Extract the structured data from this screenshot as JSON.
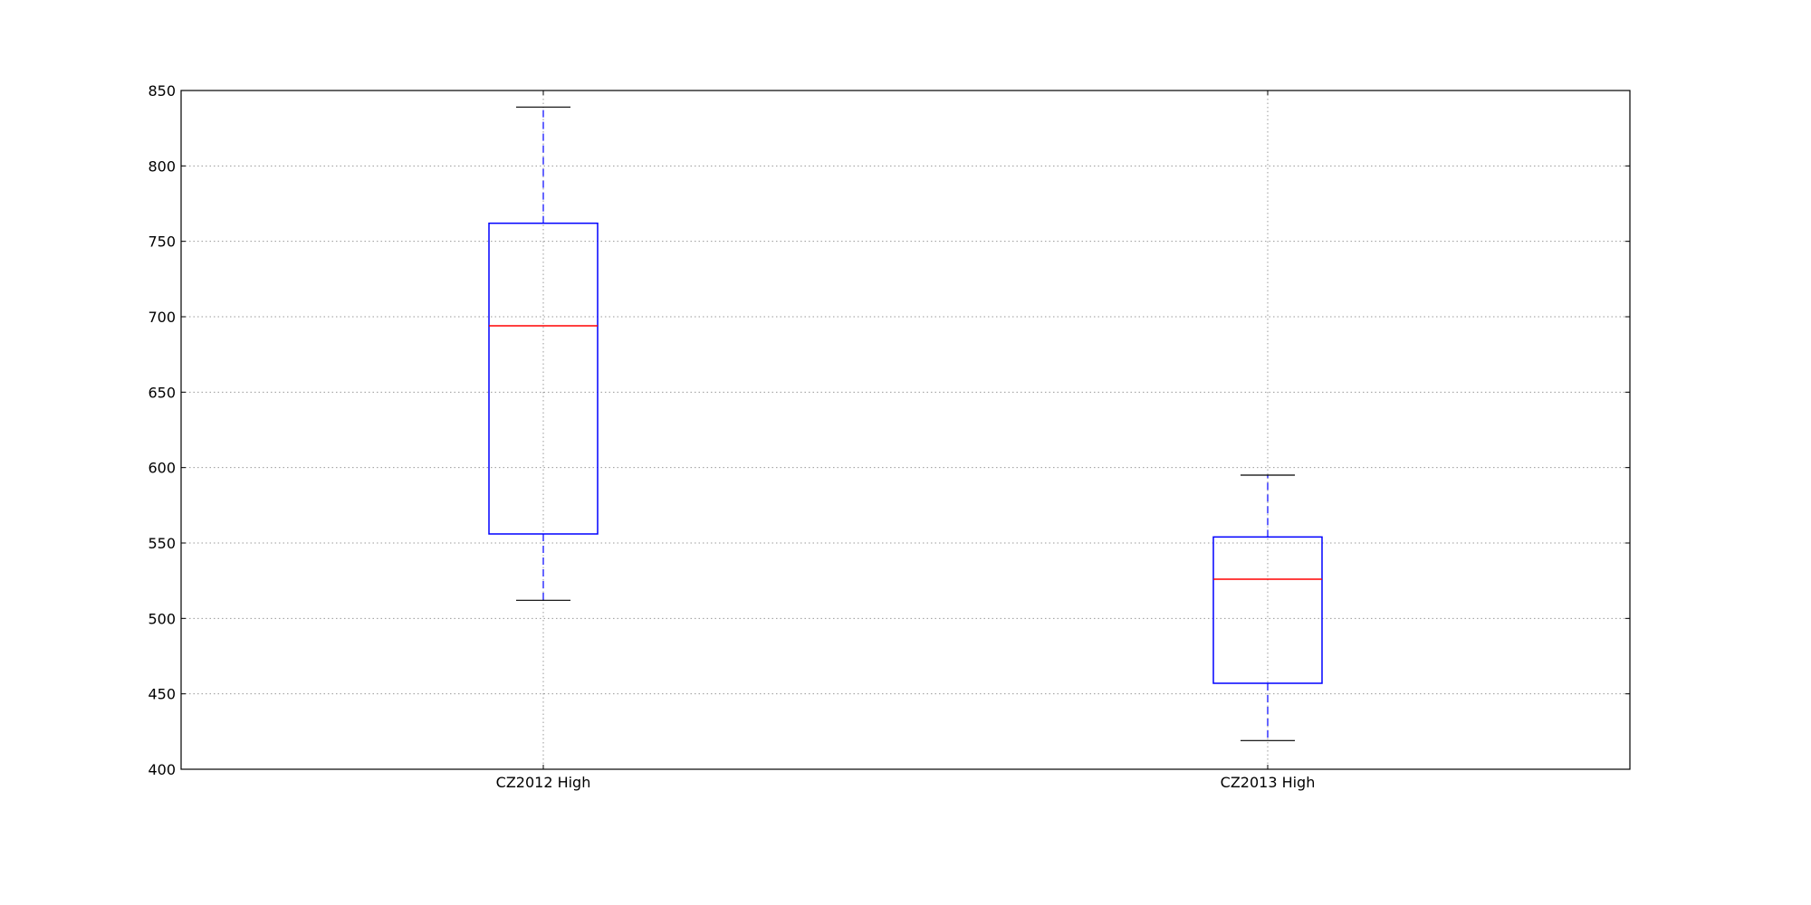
{
  "chart_data": {
    "type": "box",
    "categories": [
      "CZ2012 High",
      "CZ2013 High"
    ],
    "whislo": [
      512,
      419
    ],
    "q1": [
      556,
      457
    ],
    "median": [
      694,
      526
    ],
    "q3": [
      762,
      554
    ],
    "whishi": [
      839,
      595
    ],
    "box_color": "#0000ff",
    "median_color": "#ff0000",
    "cap_color": "#000000",
    "ylim": [
      400,
      850
    ],
    "yticks": [
      400,
      450,
      500,
      550,
      600,
      650,
      700,
      750,
      800,
      850
    ],
    "grid": true
  }
}
